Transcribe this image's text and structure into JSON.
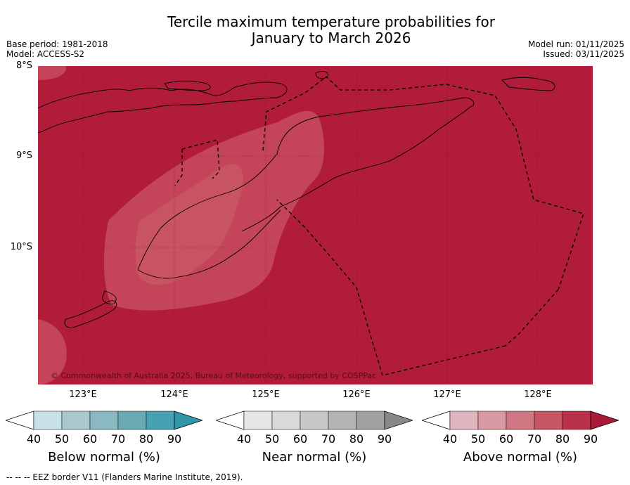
{
  "title": {
    "line1": "Tercile maximum temperature probabilities for",
    "line2": "January to March 2026"
  },
  "meta": {
    "base_period": "Base period: 1981-2018",
    "model": "Model: ACCESS-S2",
    "model_run": "Model run: 01/11/2025",
    "issued": "Issued: 03/11/2025"
  },
  "map": {
    "latitude_labels": [
      "8°S",
      "9°S",
      "10°S"
    ],
    "longitude_labels": [
      "123°E",
      "124°E",
      "125°E",
      "126°E",
      "127°E",
      "128°E"
    ],
    "copyright": "© Commonwealth of Australia 2025, Bureau of Meteorology, supported by COSPPac",
    "colors": {
      "above_80_90": "#b01c3a",
      "above_70_80": "#c4445a",
      "ocean_background": "#b01c3a"
    }
  },
  "colorbars": [
    {
      "label": "Below normal (%)",
      "ticks": [
        "40",
        "50",
        "60",
        "70",
        "80",
        "90"
      ],
      "colors": [
        "#ffffff",
        "#c8e1e6",
        "#a9c8cd",
        "#8bb9c2",
        "#6aaab5",
        "#46a2b2",
        "#2f96a8"
      ]
    },
    {
      "label": "Near normal (%)",
      "ticks": [
        "40",
        "50",
        "60",
        "70",
        "80",
        "90"
      ],
      "colors": [
        "#ffffff",
        "#e6e6e6",
        "#d9d9d9",
        "#c8c8c8",
        "#b4b4b4",
        "#a2a2a2",
        "#888888"
      ]
    },
    {
      "label": "Above normal (%)",
      "ticks": [
        "40",
        "50",
        "60",
        "70",
        "80",
        "90"
      ],
      "colors": [
        "#ffffff",
        "#e1b5bd",
        "#d99aa4",
        "#ce7782",
        "#c65664",
        "#b8304a",
        "#a81a36"
      ]
    }
  ],
  "footnote": "--  --  -- EEZ border V11 (Flanders Marine Institute, 2019)."
}
